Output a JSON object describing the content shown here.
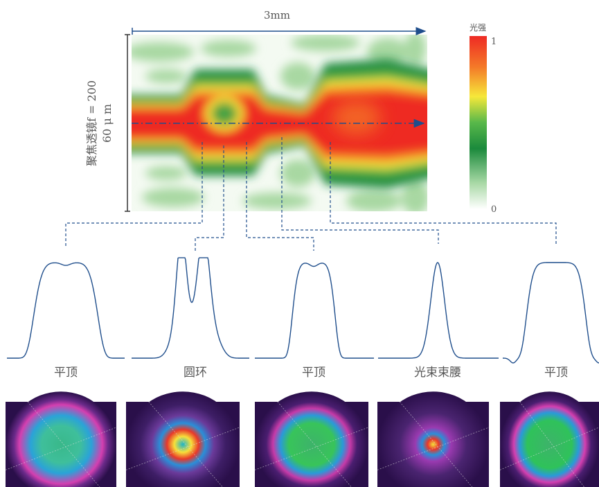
{
  "header": {
    "scale_label": "3mm",
    "colorbar_title": "光强",
    "colorbar_max": "1",
    "colorbar_min": "0",
    "lens_label": "聚焦透镜f = 200",
    "lens_sublabel": "60 μ m"
  },
  "profiles": [
    {
      "label": "平顶"
    },
    {
      "label": "圆环"
    },
    {
      "label": "平顶"
    },
    {
      "label": "光束束腰"
    },
    {
      "label": "平顶"
    }
  ]
}
